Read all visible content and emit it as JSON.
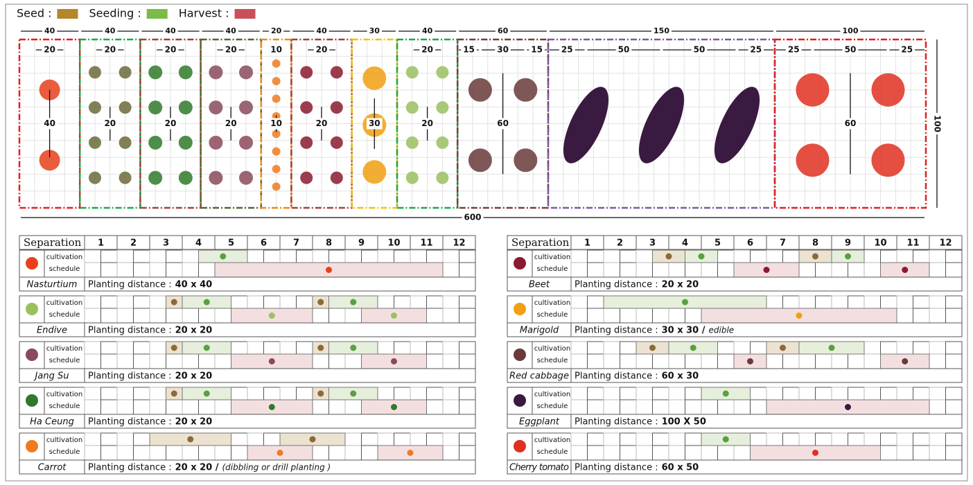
{
  "legend": [
    {
      "label": "Seed :",
      "color": "#b5862a"
    },
    {
      "label": "Seeding :",
      "color": "#7dbb48"
    },
    {
      "label": "Harvest :",
      "color": "#c9505a"
    }
  ],
  "plan": {
    "total_width": 600,
    "total_height": 100,
    "beds": [
      {
        "width": 40,
        "border": "#e02020",
        "spacings": [
          20
        ],
        "vertical": 40,
        "plant": "#e8401c"
      },
      {
        "width": 40,
        "border": "#1aa84a",
        "spacings": [
          20
        ],
        "vertical": 20,
        "plant": "#6b6a3a"
      },
      {
        "width": 40,
        "border": "#a0403a",
        "spacings": [
          20
        ],
        "vertical": 20,
        "plant": "#2f7a2a"
      },
      {
        "width": 40,
        "border": "#4a6a2a",
        "spacings": [
          20
        ],
        "vertical": 20,
        "plant": "#8a4a5a"
      },
      {
        "width": 20,
        "border": "#f08a10",
        "spacings": [
          10
        ],
        "vertical": 10,
        "plant": "#f07a20"
      },
      {
        "width": 40,
        "border": "#a0403a",
        "spacings": [
          20
        ],
        "vertical": 20,
        "plant": "#8a1a30"
      },
      {
        "width": 30,
        "border": "#f0c010",
        "spacings": [],
        "vertical": 30,
        "plant": "#f0a010"
      },
      {
        "width": 40,
        "border": "#1aa84a",
        "spacings": [
          20
        ],
        "vertical": 20,
        "plant": "#9ac060"
      },
      {
        "width": 60,
        "border": "#7a3a3a",
        "spacings": [
          15,
          30,
          15
        ],
        "vertical": 60,
        "plant": "#6a3a3a"
      },
      {
        "width": 150,
        "border": "#7a5aa0",
        "spacings": [
          25,
          50,
          50,
          25
        ],
        "plant": "#3a1a40"
      },
      {
        "width": 100,
        "border": "#e02020",
        "spacings": [
          25,
          50,
          25
        ],
        "vertical": 60,
        "plant": "#e03020"
      }
    ]
  },
  "tables": [
    {
      "header": "Separation",
      "months": [
        1,
        2,
        3,
        4,
        5,
        6,
        7,
        8,
        9,
        10,
        11,
        12
      ],
      "rows": [
        {
          "name": "Nasturtium",
          "icon": "#e8401c",
          "row_labels": [
            "cultivation",
            "schedule"
          ],
          "distance_label": "Planting distance :",
          "distance": "40 x 40",
          "seed": [],
          "seeding": [
            [
              4.5,
              6
            ]
          ],
          "harvest": [
            [
              5,
              12
            ]
          ]
        },
        {
          "name": "Endive",
          "icon": "#9ac060",
          "row_labels": [
            "cultivation",
            "schedule"
          ],
          "distance_label": "Planting distance :",
          "distance": "20 x 20",
          "seed": [
            [
              3.5,
              4
            ],
            [
              8,
              8.5
            ]
          ],
          "seeding": [
            [
              4,
              5.5
            ],
            [
              8.5,
              10
            ]
          ],
          "harvest": [
            [
              5.5,
              8
            ],
            [
              9.5,
              11.5
            ]
          ]
        },
        {
          "name": "Jang Su",
          "icon": "#8a4a5a",
          "row_labels": [
            "cultivation",
            "schedule"
          ],
          "distance_label": "Planting distance :",
          "distance": "20 x 20",
          "seed": [
            [
              3.5,
              4
            ],
            [
              8,
              8.5
            ]
          ],
          "seeding": [
            [
              4,
              5.5
            ],
            [
              8.5,
              10
            ]
          ],
          "harvest": [
            [
              5.5,
              8
            ],
            [
              9.5,
              11.5
            ]
          ]
        },
        {
          "name": "Ha Ceung",
          "icon": "#2f7a2a",
          "row_labels": [
            "cultivation",
            "schedule"
          ],
          "distance_label": "Planting distance :",
          "distance": "20 x 20",
          "seed": [
            [
              3.5,
              4
            ],
            [
              8,
              8.5
            ]
          ],
          "seeding": [
            [
              4,
              5.5
            ],
            [
              8.5,
              10
            ]
          ],
          "harvest": [
            [
              5.5,
              8
            ],
            [
              9.5,
              11.5
            ]
          ]
        },
        {
          "name": "Carrot",
          "icon": "#f07a20",
          "row_labels": [
            "cultivation",
            "schedule"
          ],
          "distance_label": "Planting distance :",
          "distance": "20 x 20 /",
          "note": "(dibbling or drill planting )",
          "seed": [
            [
              3,
              5.5
            ],
            [
              7,
              9
            ]
          ],
          "seeding": [],
          "harvest": [
            [
              6,
              8
            ],
            [
              10,
              12
            ]
          ]
        }
      ]
    },
    {
      "header": "Separation",
      "months": [
        1,
        2,
        3,
        4,
        5,
        6,
        7,
        8,
        9,
        10,
        11,
        12
      ],
      "rows": [
        {
          "name": "Beet",
          "icon": "#8a1a30",
          "row_labels": [
            "cultivation",
            "schedule"
          ],
          "distance_label": "Planting distance :",
          "distance": "20 x 20",
          "seed": [
            [
              3.5,
              4.5
            ],
            [
              8,
              9
            ]
          ],
          "seeding": [
            [
              4.5,
              5.5
            ],
            [
              9,
              10
            ]
          ],
          "harvest": [
            [
              6,
              8
            ],
            [
              10.5,
              12
            ]
          ]
        },
        {
          "name": "Marigold",
          "icon": "#f0a010",
          "row_labels": [
            "cultivation",
            "schedule"
          ],
          "distance_label": "Planting distance :",
          "distance": "30 x 30 /",
          "note": "edible",
          "seed": [],
          "seeding": [
            [
              2,
              7
            ]
          ],
          "harvest": [
            [
              5,
              11
            ]
          ]
        },
        {
          "name": "Red cabbage",
          "icon": "#6a3a3a",
          "row_labels": [
            "cultivation",
            "schedule"
          ],
          "distance_label": "Planting distance :",
          "distance": "60 x 30",
          "seed": [
            [
              3,
              4
            ],
            [
              7,
              8
            ]
          ],
          "seeding": [
            [
              4,
              5.5
            ],
            [
              8,
              10
            ]
          ],
          "harvest": [
            [
              6,
              7
            ],
            [
              10.5,
              12
            ]
          ]
        },
        {
          "name": "Eggplant",
          "icon": "#3a1a40",
          "row_labels": [
            "cultivation",
            "schedule"
          ],
          "distance_label": "Planting distance :",
          "distance": "100 X 50",
          "seed": [],
          "seeding": [
            [
              5,
              6.5
            ]
          ],
          "harvest": [
            [
              7,
              12
            ]
          ]
        },
        {
          "name": "Cherry tomato",
          "icon": "#e03020",
          "row_labels": [
            "cultivation",
            "schedule"
          ],
          "distance_label": "Planting distance :",
          "distance": "60 x 50",
          "seed": [],
          "seeding": [
            [
              5,
              6.5
            ]
          ],
          "harvest": [
            [
              6.5,
              10.5
            ]
          ]
        }
      ]
    }
  ]
}
